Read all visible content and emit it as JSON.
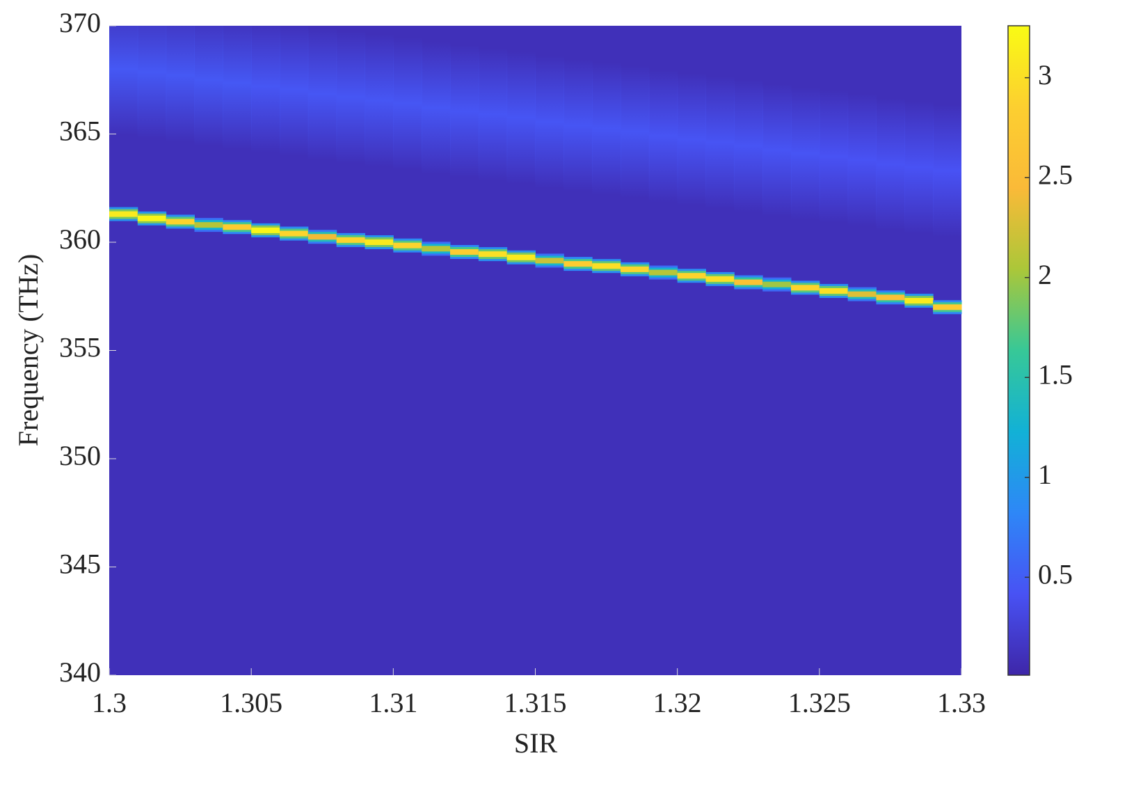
{
  "chart_data": {
    "type": "heatmap",
    "x_label": "SIR",
    "y_label": "Frequency (THz)",
    "x": [
      1.3,
      1.301,
      1.302,
      1.303,
      1.304,
      1.305,
      1.306,
      1.307,
      1.308,
      1.309,
      1.31,
      1.311,
      1.312,
      1.313,
      1.314,
      1.315,
      1.316,
      1.317,
      1.318,
      1.319,
      1.32,
      1.321,
      1.322,
      1.323,
      1.324,
      1.325,
      1.326,
      1.327,
      1.328,
      1.329
    ],
    "x_step": 0.001,
    "ridge": {
      "freq": [
        361.3,
        361.1,
        360.95,
        360.8,
        360.7,
        360.55,
        360.4,
        360.25,
        360.1,
        360.0,
        359.85,
        359.7,
        359.55,
        359.45,
        359.3,
        359.15,
        359.0,
        358.9,
        358.75,
        358.6,
        358.45,
        358.3,
        358.15,
        358.05,
        357.9,
        357.75,
        357.6,
        357.45,
        357.3,
        357.0
      ],
      "value": [
        3.1,
        3.2,
        2.9,
        2.1,
        2.8,
        3.2,
        2.9,
        2.4,
        2.9,
        3.1,
        2.9,
        2.1,
        2.8,
        3.0,
        3.1,
        2.2,
        2.8,
        3.0,
        2.9,
        2.1,
        2.9,
        3.0,
        2.6,
        2.0,
        2.9,
        3.0,
        2.3,
        2.6,
        3.1,
        2.8
      ]
    },
    "band": {
      "freq": [
        368.0,
        367.85,
        367.7,
        367.5,
        367.35,
        367.2,
        367.05,
        366.85,
        366.7,
        366.55,
        366.4,
        366.2,
        366.05,
        365.9,
        365.75,
        365.55,
        365.4,
        365.25,
        365.1,
        364.9,
        364.75,
        364.6,
        364.45,
        364.25,
        364.1,
        363.95,
        363.8,
        363.6,
        363.45,
        363.3
      ],
      "value": [
        0.46,
        0.46,
        0.46,
        0.46,
        0.46,
        0.45,
        0.45,
        0.45,
        0.45,
        0.45,
        0.45,
        0.45,
        0.44,
        0.44,
        0.44,
        0.44,
        0.44,
        0.44,
        0.44,
        0.43,
        0.43,
        0.43,
        0.43,
        0.43,
        0.43,
        0.42,
        0.42,
        0.42,
        0.42,
        0.42
      ]
    },
    "background_value": 0.1,
    "xlim": [
      1.3,
      1.33
    ],
    "xticks": [
      1.3,
      1.305,
      1.31,
      1.315,
      1.32,
      1.325,
      1.33
    ],
    "ylim": [
      340,
      370
    ],
    "yticks": [
      340,
      345,
      350,
      355,
      360,
      365,
      370
    ],
    "clim": [
      0.01,
      3.26
    ],
    "cticks": [
      0.5,
      1,
      1.5,
      2,
      2.5,
      3
    ],
    "colormap": "parula",
    "grid": false
  }
}
